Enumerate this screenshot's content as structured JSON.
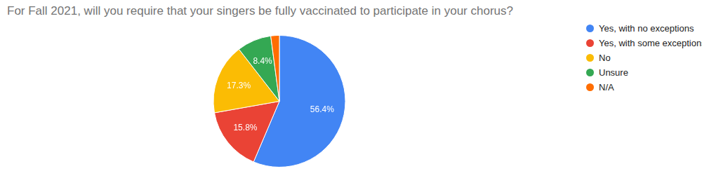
{
  "chart_data": {
    "type": "pie",
    "title": "For Fall 2021, will you require that your singers be fully vaccinated to participate in your chorus?",
    "categories": [
      "Yes, with no exceptions",
      "Yes, with some exceptions",
      "No",
      "Unsure",
      "N/A"
    ],
    "values": [
      56.4,
      15.8,
      17.3,
      8.4,
      2.1
    ],
    "value_labels": [
      "56.4%",
      "15.8%",
      "17.3%",
      "8.4%",
      null
    ],
    "colors": [
      "#4285f4",
      "#ea4335",
      "#fbbc04",
      "#34a853",
      "#ff6d01"
    ],
    "data_labels": true,
    "legend": "right"
  }
}
